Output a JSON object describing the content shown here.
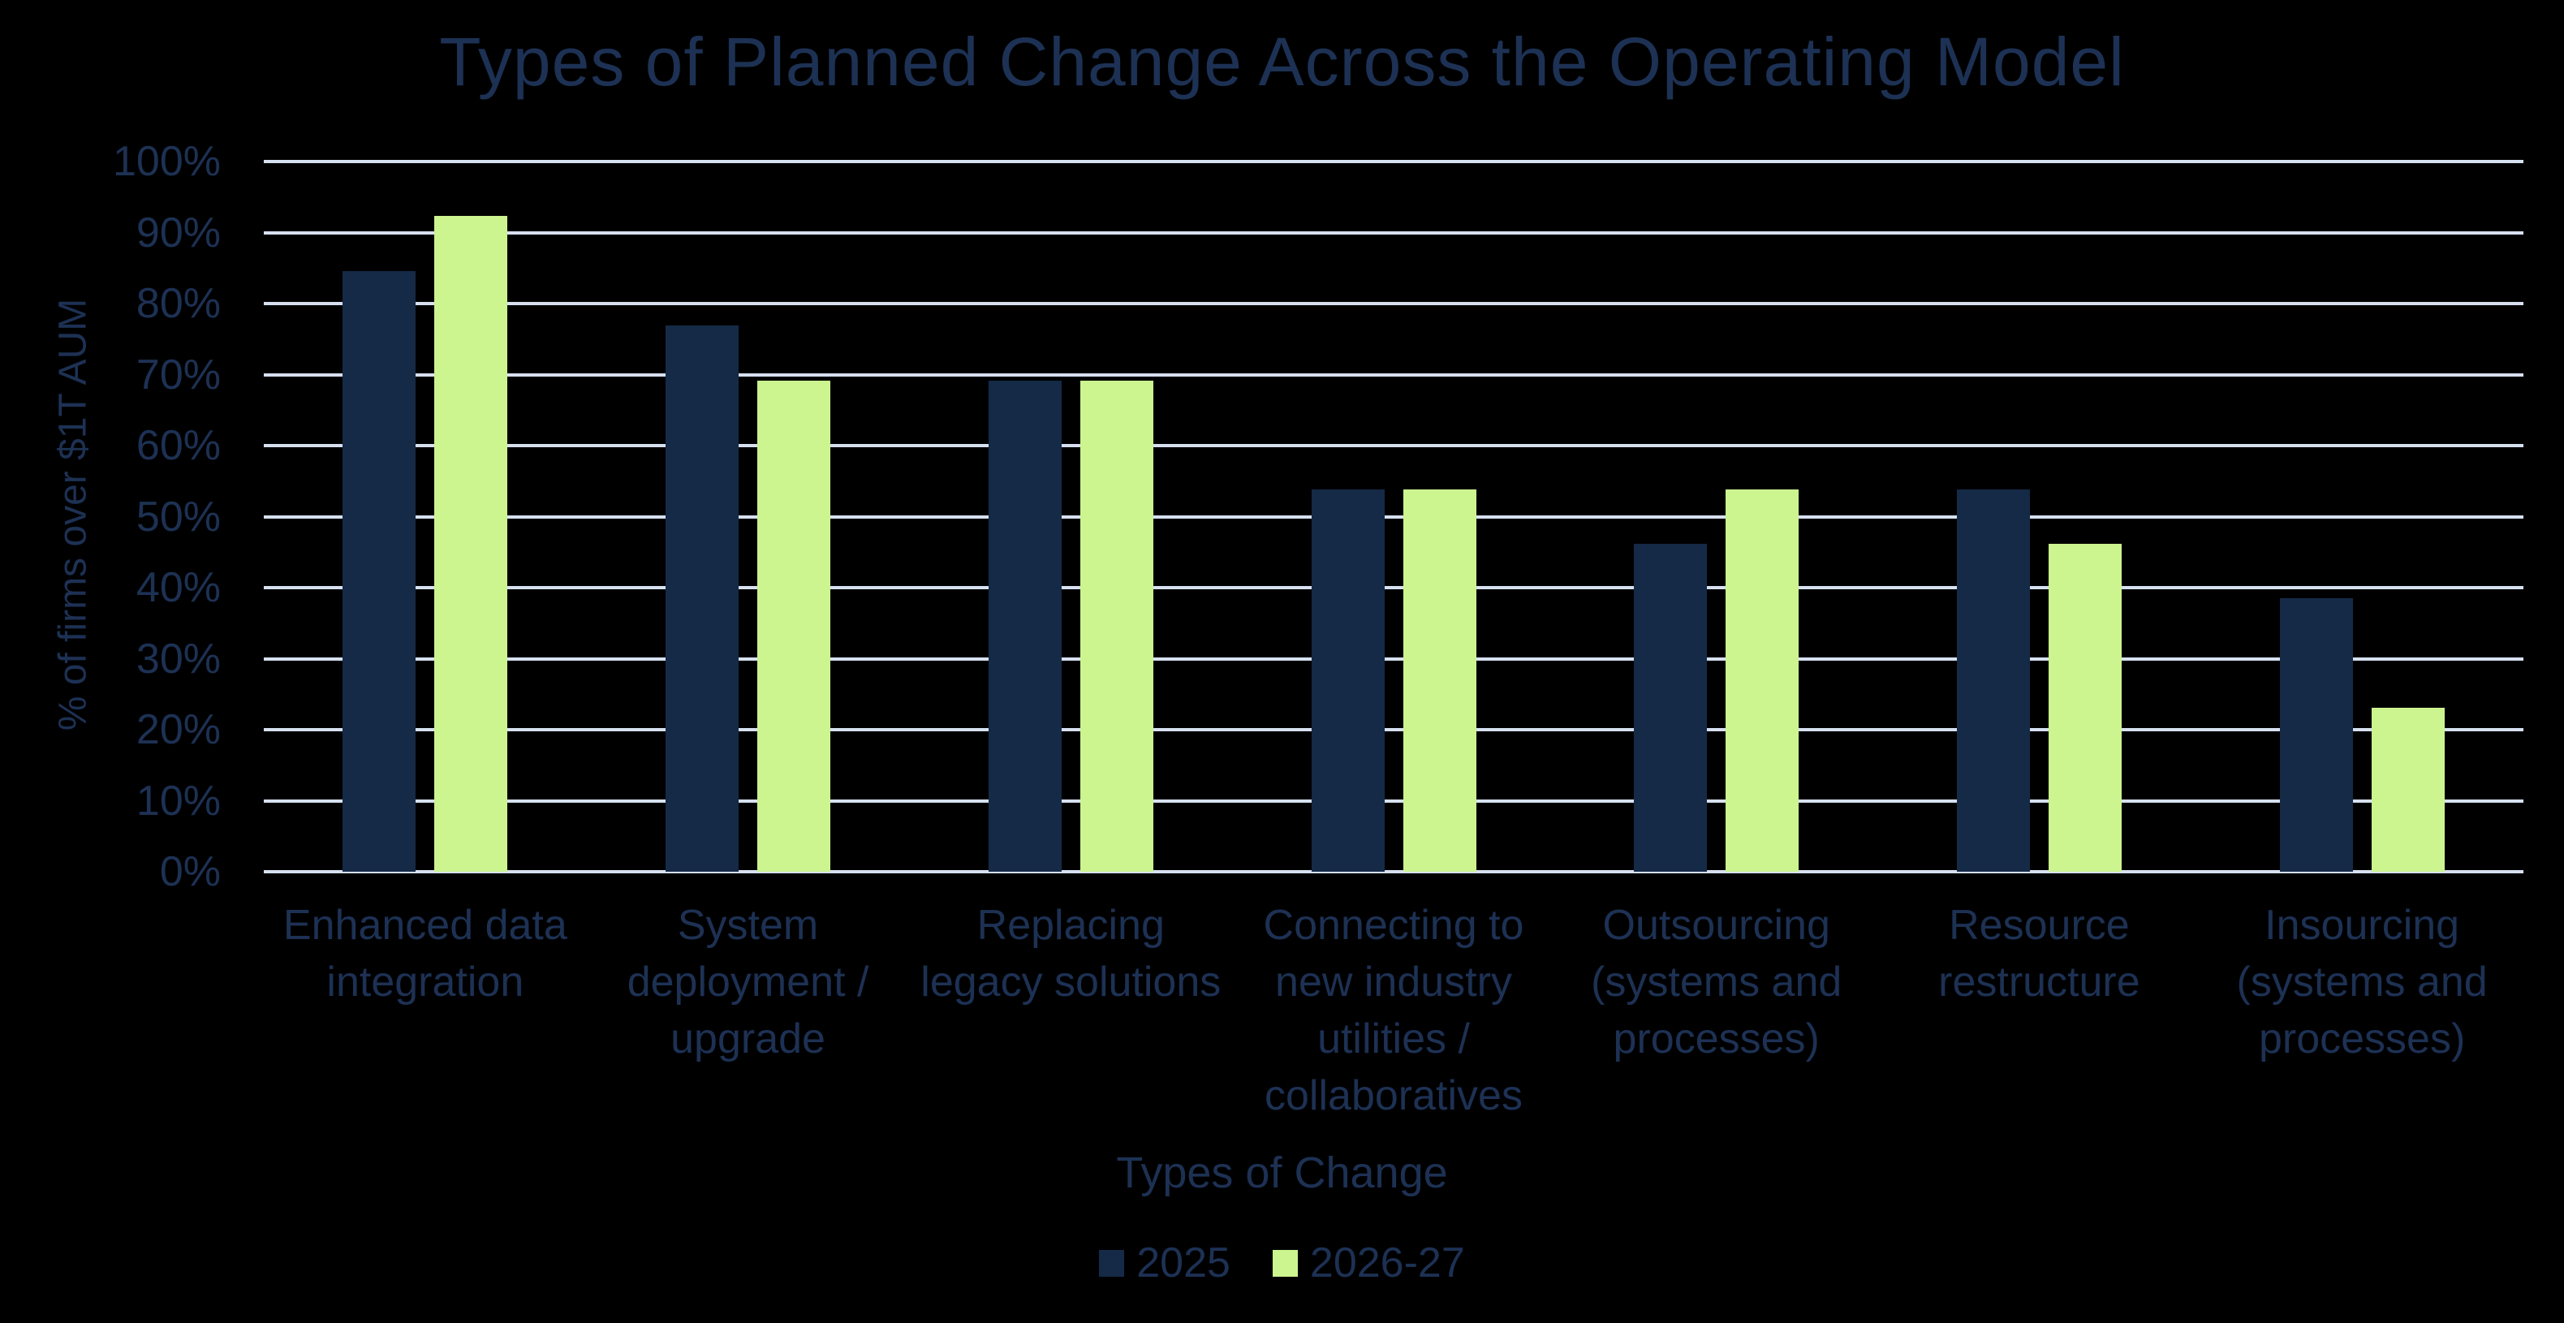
{
  "colors": {
    "background": "#000000",
    "text": "#1D3154",
    "gridline": "#D6E0F0",
    "bar_navy": "#152A47",
    "bar_green": "#CCF48F"
  },
  "chart_data": {
    "type": "bar",
    "title": "Types of Planned Change Across the Operating Model",
    "xlabel": "Types of Change",
    "ylabel": "% of firms over $1T AUM",
    "ylim": [
      0,
      100
    ],
    "ytick_step": 10,
    "ytick_labels": [
      "0%",
      "10%",
      "20%",
      "30%",
      "40%",
      "50%",
      "60%",
      "70%",
      "80%",
      "90%",
      "100%"
    ],
    "grid": true,
    "legend_position": "bottom",
    "categories": [
      "Enhanced data\nintegration",
      "System\ndeployment /\nupgrade",
      "Replacing\nlegacy solutions",
      "Connecting to\nnew industry\nutilities /\ncollaboratives",
      "Outsourcing\n(systems and\nprocesses)",
      "Resource\nrestructure",
      "Insourcing\n(systems and\nprocesses)"
    ],
    "series": [
      {
        "name": "2025",
        "color": "#152A47",
        "values": [
          84.6,
          76.9,
          69.2,
          53.8,
          46.2,
          53.8,
          38.5
        ]
      },
      {
        "name": "2026-27",
        "color": "#CCF48F",
        "values": [
          92.3,
          69.2,
          69.2,
          53.8,
          53.8,
          46.2,
          23.1
        ]
      }
    ]
  }
}
